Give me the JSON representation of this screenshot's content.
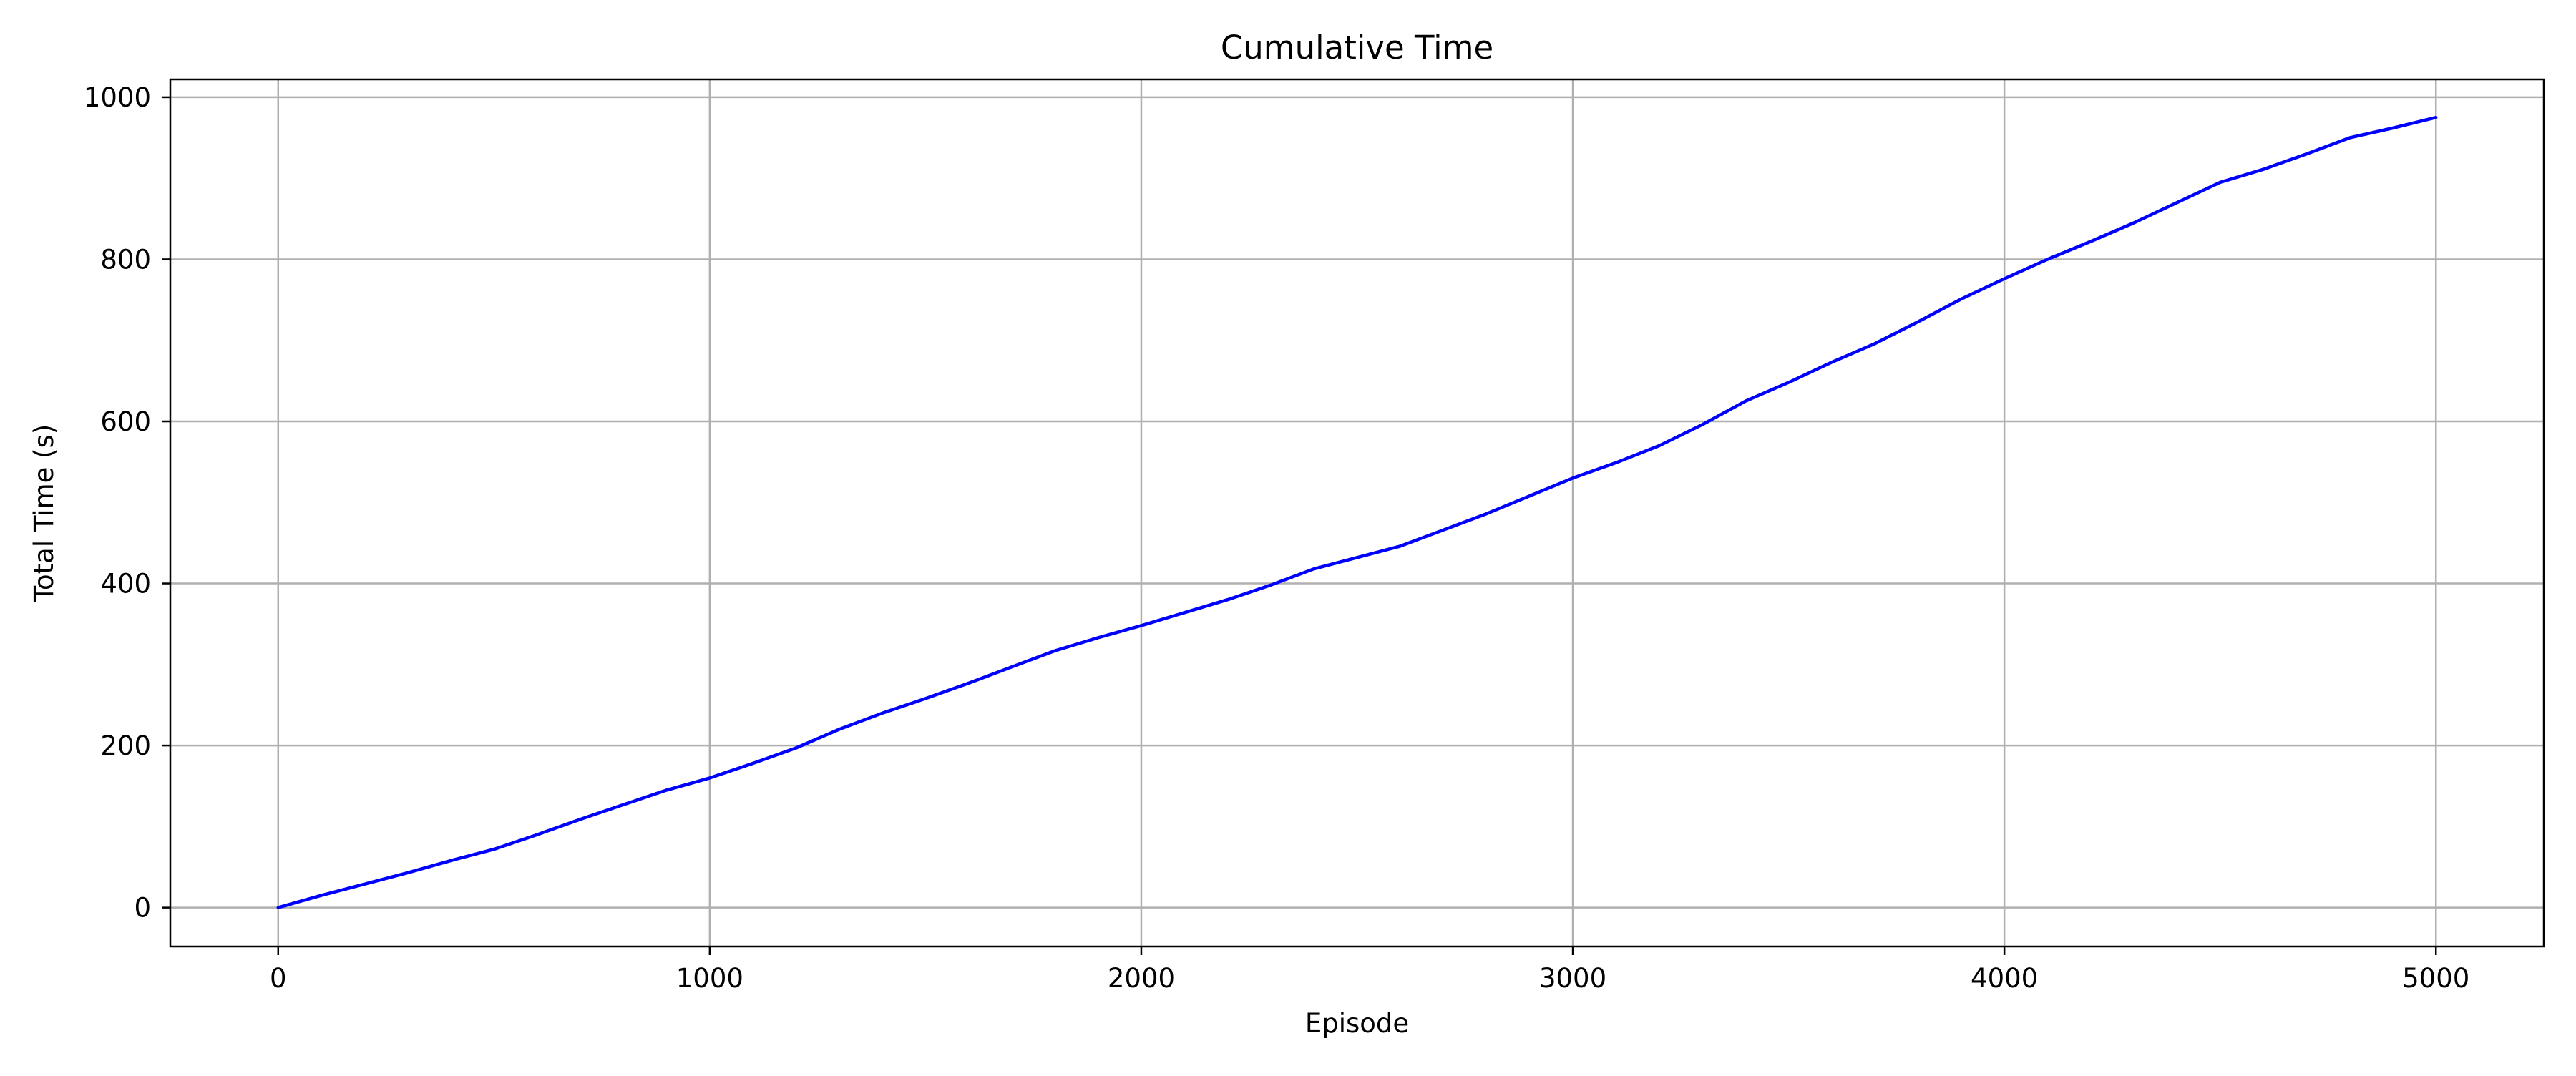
{
  "chart_data": {
    "type": "line",
    "title": "Cumulative Time",
    "xlabel": "Episode",
    "ylabel": "Total Time (s)",
    "xlim": [
      -250,
      5250
    ],
    "ylim": [
      -48,
      1022
    ],
    "x_ticks": [
      0,
      1000,
      2000,
      3000,
      4000,
      5000
    ],
    "y_ticks": [
      0,
      200,
      400,
      600,
      800,
      1000
    ],
    "grid": true,
    "legend": "none",
    "colors": {
      "line": "#0000ff",
      "grid": "#b0b0b0",
      "frame": "#000000"
    },
    "series": [
      {
        "x": [
          0,
          100,
          200,
          300,
          400,
          500,
          600,
          700,
          800,
          900,
          1000,
          1100,
          1200,
          1300,
          1400,
          1500,
          1600,
          1700,
          1800,
          1900,
          2000,
          2100,
          2200,
          2300,
          2400,
          2500,
          2600,
          2700,
          2800,
          2900,
          3000,
          3100,
          3200,
          3300,
          3400,
          3500,
          3600,
          3700,
          3800,
          3900,
          4000,
          4100,
          4200,
          4300,
          4400,
          4500,
          4600,
          4700,
          4800,
          4900,
          5000
        ],
        "values": [
          0,
          15,
          29,
          43,
          58,
          72,
          90,
          109,
          127,
          145,
          160,
          178,
          197,
          220,
          240,
          258,
          277,
          297,
          317,
          333,
          348,
          364,
          380,
          398,
          418,
          432,
          446,
          466,
          486,
          508,
          530,
          549,
          570,
          596,
          625,
          648,
          673,
          696,
          723,
          751,
          776,
          800,
          822,
          845,
          870,
          895,
          911,
          930,
          950,
          962,
          975
        ]
      }
    ]
  }
}
